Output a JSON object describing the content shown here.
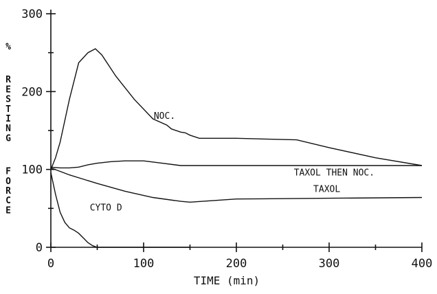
{
  "chart_data": {
    "type": "line",
    "title": "",
    "xlabel": "TIME (min)",
    "ylabel": "% RESTING FORCE",
    "xlim": [
      0,
      400
    ],
    "ylim": [
      0,
      300
    ],
    "x_ticks": [
      0,
      100,
      200,
      300,
      400
    ],
    "y_ticks": [
      0,
      100,
      200,
      300
    ],
    "grid": false,
    "series": [
      {
        "name": "NOC.",
        "x": [
          0,
          5,
          10,
          20,
          30,
          40,
          48,
          55,
          70,
          90,
          110,
          125,
          130,
          140,
          145,
          150,
          160,
          200,
          265,
          300,
          350,
          400
        ],
        "values": [
          100,
          115,
          135,
          190,
          237,
          250,
          255,
          247,
          220,
          190,
          165,
          157,
          152,
          148,
          147,
          144,
          140,
          140,
          138,
          128,
          115,
          105
        ]
      },
      {
        "name": "TAXOL THEN NOC.",
        "x": [
          0,
          10,
          20,
          30,
          40,
          50,
          65,
          80,
          100,
          120,
          140,
          200,
          300,
          400
        ],
        "values": [
          103,
          102,
          102,
          103,
          106,
          108,
          110,
          111,
          111,
          108,
          105,
          105,
          105,
          105
        ]
      },
      {
        "name": "TAXOL",
        "x": [
          0,
          20,
          50,
          80,
          110,
          140,
          150,
          200,
          300,
          400
        ],
        "values": [
          102,
          93,
          82,
          72,
          64,
          59,
          58,
          62,
          63,
          64
        ]
      },
      {
        "name": "CYTO D",
        "x": [
          0,
          5,
          10,
          15,
          20,
          25,
          30,
          35,
          40,
          45,
          50,
          60,
          100,
          150
        ],
        "values": [
          96,
          68,
          45,
          32,
          25,
          22,
          18,
          12,
          6,
          2,
          0,
          0,
          0,
          0
        ]
      }
    ]
  }
}
